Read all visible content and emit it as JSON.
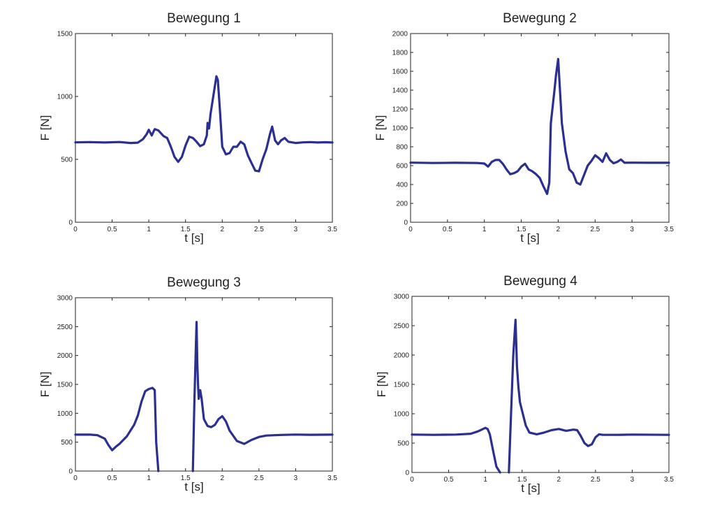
{
  "colors": {
    "line": "#2b2f8f",
    "axis": "#222222",
    "background": "#ffffff"
  },
  "chart_data": [
    {
      "type": "line",
      "title": "Bewegung 1",
      "xlabel": "t [s]",
      "ylabel": "F [N]",
      "xlim": [
        0,
        3.5
      ],
      "ylim": [
        0,
        1500
      ],
      "xticks": [
        0,
        0.5,
        1,
        1.5,
        2,
        2.5,
        3,
        3.5
      ],
      "xtick_labels": [
        "0",
        "0.5",
        "1",
        "1.5",
        "2",
        "2.5",
        "3",
        "3.5"
      ],
      "yticks": [
        0,
        500,
        1000,
        1500
      ],
      "ytick_labels": [
        "0",
        "500",
        "1000",
        "1500"
      ],
      "grid": false,
      "series": [
        {
          "x": [
            0,
            0.2,
            0.4,
            0.6,
            0.75,
            0.85,
            0.92,
            0.97,
            1.0,
            1.04,
            1.08,
            1.13,
            1.2,
            1.25,
            1.3,
            1.35,
            1.4,
            1.45,
            1.5,
            1.55,
            1.6,
            1.65,
            1.7,
            1.75,
            1.79,
            1.8,
            1.82,
            1.84,
            1.88,
            1.92,
            1.94,
            1.97,
            2.0,
            2.05,
            2.1,
            2.15,
            2.2,
            2.25,
            2.3,
            2.35,
            2.4,
            2.45,
            2.5,
            2.55,
            2.6,
            2.65,
            2.68,
            2.72,
            2.76,
            2.8,
            2.85,
            2.9,
            3.0,
            3.1,
            3.2,
            3.3,
            3.4,
            3.5
          ],
          "y": [
            635,
            637,
            634,
            638,
            630,
            633,
            660,
            700,
            735,
            690,
            740,
            730,
            685,
            670,
            600,
            520,
            480,
            520,
            610,
            680,
            670,
            640,
            605,
            620,
            690,
            790,
            745,
            860,
            1010,
            1160,
            1130,
            880,
            600,
            540,
            550,
            600,
            600,
            640,
            620,
            530,
            470,
            410,
            405,
            500,
            580,
            700,
            760,
            650,
            620,
            650,
            670,
            640,
            630,
            635,
            637,
            634,
            636,
            634
          ]
        }
      ]
    },
    {
      "type": "line",
      "title": "Bewegung 2",
      "xlabel": "t [s]",
      "ylabel": "F [N]",
      "xlim": [
        0,
        3.5
      ],
      "ylim": [
        0,
        2000
      ],
      "xticks": [
        0,
        0.5,
        1,
        1.5,
        2,
        2.5,
        3,
        3.5
      ],
      "xtick_labels": [
        "0",
        "0.5",
        "1",
        "1.5",
        "2",
        "2.5",
        "3",
        "3.5"
      ],
      "yticks": [
        0,
        200,
        400,
        600,
        800,
        1000,
        1200,
        1400,
        1600,
        1800,
        2000
      ],
      "ytick_labels": [
        "0",
        "200",
        "400",
        "600",
        "800",
        "1000",
        "1200",
        "1400",
        "1600",
        "1800",
        "2000"
      ],
      "grid": false,
      "series": [
        {
          "x": [
            0,
            0.3,
            0.6,
            0.9,
            1.0,
            1.05,
            1.1,
            1.15,
            1.2,
            1.25,
            1.3,
            1.35,
            1.4,
            1.45,
            1.5,
            1.55,
            1.6,
            1.65,
            1.7,
            1.75,
            1.8,
            1.85,
            1.88,
            1.9,
            1.95,
            1.97,
            2.0,
            2.05,
            2.1,
            2.15,
            2.2,
            2.25,
            2.3,
            2.35,
            2.4,
            2.45,
            2.5,
            2.55,
            2.6,
            2.65,
            2.7,
            2.75,
            2.8,
            2.85,
            2.9,
            3.0,
            3.2,
            3.5
          ],
          "y": [
            632,
            628,
            630,
            628,
            622,
            590,
            640,
            660,
            660,
            620,
            560,
            510,
            520,
            540,
            590,
            620,
            560,
            540,
            510,
            470,
            380,
            300,
            420,
            1050,
            1400,
            1560,
            1730,
            1050,
            750,
            560,
            520,
            420,
            400,
            500,
            600,
            650,
            710,
            680,
            640,
            730,
            660,
            625,
            640,
            665,
            630,
            632,
            630,
            630
          ]
        }
      ]
    },
    {
      "type": "line",
      "title": "Bewegung 3",
      "xlabel": "t [s]",
      "ylabel": "F [N]",
      "xlim": [
        0,
        3.5
      ],
      "ylim": [
        0,
        3000
      ],
      "xticks": [
        0,
        0.5,
        1,
        1.5,
        2,
        2.5,
        3,
        3.5
      ],
      "xtick_labels": [
        "0",
        "0.5",
        "1",
        "1.5",
        "2",
        "2.5",
        "3",
        "3.5"
      ],
      "yticks": [
        0,
        500,
        1000,
        1500,
        2000,
        2500,
        3000
      ],
      "ytick_labels": [
        "0",
        "500",
        "1000",
        "1500",
        "2000",
        "2500",
        "3000"
      ],
      "grid": false,
      "series": [
        {
          "x": [
            0,
            0.2,
            0.3,
            0.4,
            0.45,
            0.5,
            0.55,
            0.6,
            0.7,
            0.8,
            0.85,
            0.9,
            0.95,
            1.0,
            1.05,
            1.08,
            1.1,
            1.13
          ],
          "y": [
            630,
            630,
            620,
            560,
            450,
            360,
            420,
            470,
            600,
            800,
            960,
            1200,
            1380,
            1420,
            1440,
            1400,
            500,
            0
          ]
        },
        {
          "x": [
            1.6,
            1.62,
            1.64,
            1.65,
            1.66,
            1.67,
            1.68,
            1.7,
            1.72,
            1.75,
            1.8,
            1.85,
            1.9,
            1.95,
            2.0,
            2.05,
            2.1,
            2.2,
            2.3,
            2.4,
            2.5,
            2.6,
            2.8,
            3.0,
            3.2,
            3.5
          ],
          "y": [
            0,
            1150,
            2100,
            2580,
            1900,
            1500,
            1250,
            1400,
            1250,
            900,
            780,
            760,
            800,
            900,
            950,
            860,
            700,
            520,
            470,
            540,
            590,
            615,
            625,
            632,
            628,
            630
          ]
        }
      ]
    },
    {
      "type": "line",
      "title": "Bewegung 4",
      "xlabel": "t [s]",
      "ylabel": "F [N]",
      "xlim": [
        0,
        3.5
      ],
      "ylim": [
        0,
        3000
      ],
      "xticks": [
        0,
        0.5,
        1,
        1.5,
        2,
        2.5,
        3,
        3.5
      ],
      "xtick_labels": [
        "0",
        "0.5",
        "1",
        "1.5",
        "2",
        "2.5",
        "3",
        "3.5"
      ],
      "yticks": [
        0,
        500,
        1000,
        1500,
        2000,
        2500,
        3000
      ],
      "ytick_labels": [
        "0",
        "500",
        "1000",
        "1500",
        "2000",
        "2500",
        "3000"
      ],
      "grid": false,
      "series": [
        {
          "x": [
            0,
            0.3,
            0.6,
            0.8,
            0.9,
            0.95,
            1.0,
            1.03,
            1.06,
            1.1,
            1.15,
            1.2
          ],
          "y": [
            645,
            640,
            645,
            660,
            700,
            730,
            760,
            740,
            650,
            400,
            100,
            0
          ]
        },
        {
          "x": [
            1.32,
            1.35,
            1.38,
            1.41,
            1.43,
            1.45,
            1.47,
            1.5,
            1.55,
            1.6,
            1.7,
            1.8,
            1.9,
            2.0,
            2.1,
            2.2,
            2.25,
            2.3,
            2.35,
            2.4,
            2.45,
            2.5,
            2.55,
            2.6,
            2.8,
            3.0,
            3.5
          ],
          "y": [
            0,
            1000,
            2000,
            2600,
            1800,
            1450,
            1200,
            1050,
            800,
            680,
            650,
            680,
            720,
            740,
            710,
            730,
            720,
            620,
            500,
            450,
            480,
            600,
            650,
            640,
            640,
            645,
            640
          ]
        }
      ]
    }
  ]
}
